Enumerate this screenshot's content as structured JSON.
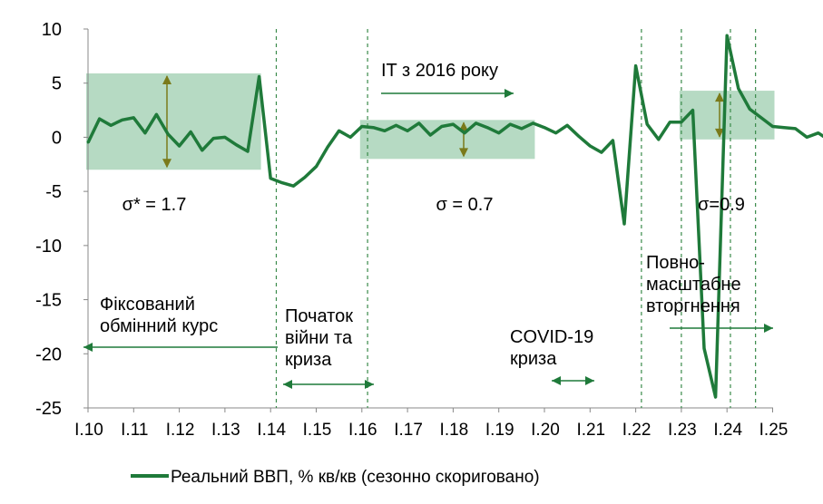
{
  "chart_data": {
    "type": "line",
    "title": "",
    "xlabel": "",
    "ylabel": "",
    "ylim": [
      -25,
      10
    ],
    "yticks": [
      "10",
      "5",
      "0",
      "-5",
      "-10",
      "-15",
      "-20",
      "-25"
    ],
    "xticks": [
      "I.10",
      "I.11",
      "I.12",
      "I.13",
      "I.14",
      "I.15",
      "I.16",
      "I.17",
      "I.18",
      "I.19",
      "I.20",
      "I.21",
      "I.22",
      "I.23",
      "I.24",
      "I.25"
    ],
    "grid": false,
    "legend_position": "bottom",
    "series": [
      {
        "name": "Реальний ВВП, % кв/кв (сезонно скориговано)",
        "color": "#1f7a3a",
        "values": [
          -0.5,
          1.7,
          1.1,
          1.6,
          1.8,
          0.4,
          2.1,
          0.3,
          -0.8,
          0.5,
          -1.2,
          -0.1,
          0.0,
          -0.7,
          -1.3,
          5.6,
          -3.8,
          -4.2,
          -4.5,
          -3.7,
          -2.7,
          -0.9,
          0.6,
          0.0,
          1.0,
          0.9,
          0.6,
          1.1,
          0.6,
          1.3,
          0.2,
          1.0,
          1.2,
          0.4,
          1.3,
          0.9,
          0.4,
          1.2,
          0.8,
          1.3,
          0.9,
          0.4,
          1.1,
          0.1,
          -0.8,
          -1.4,
          -0.3,
          -8.0,
          6.6,
          1.2,
          -0.2,
          1.4,
          1.4,
          2.5,
          -19.5,
          -24.0,
          9.4,
          4.5,
          2.6,
          1.8,
          1.0,
          0.9,
          0.8,
          0.0,
          0.4,
          -0.3,
          0.7
        ]
      }
    ],
    "bands": [
      {
        "x_start": "I.10",
        "x_end": "IV.13",
        "y_low": -3.0,
        "y_high": 5.9,
        "label": "σ* = 1.7"
      },
      {
        "x_start": "I.16",
        "x_end": "IV.19",
        "y_low": -2.0,
        "y_high": 1.6,
        "label": "σ = 0.7"
      },
      {
        "x_start": "I.23",
        "x_end": "I.25",
        "y_low": -0.2,
        "y_high": 4.3,
        "label": "σ=0.9"
      }
    ],
    "annotations": [
      {
        "text": "IT з 2016 року",
        "position": "top-center"
      },
      {
        "text": "Фіксований обмінний курс",
        "position": "left"
      },
      {
        "text": "Початок війни та криза",
        "position": "lower-left-center"
      },
      {
        "text": "COVID-19 криза",
        "position": "lower-right-center"
      },
      {
        "text": "Повно-масштабне вторгнення",
        "position": "right"
      }
    ]
  }
}
